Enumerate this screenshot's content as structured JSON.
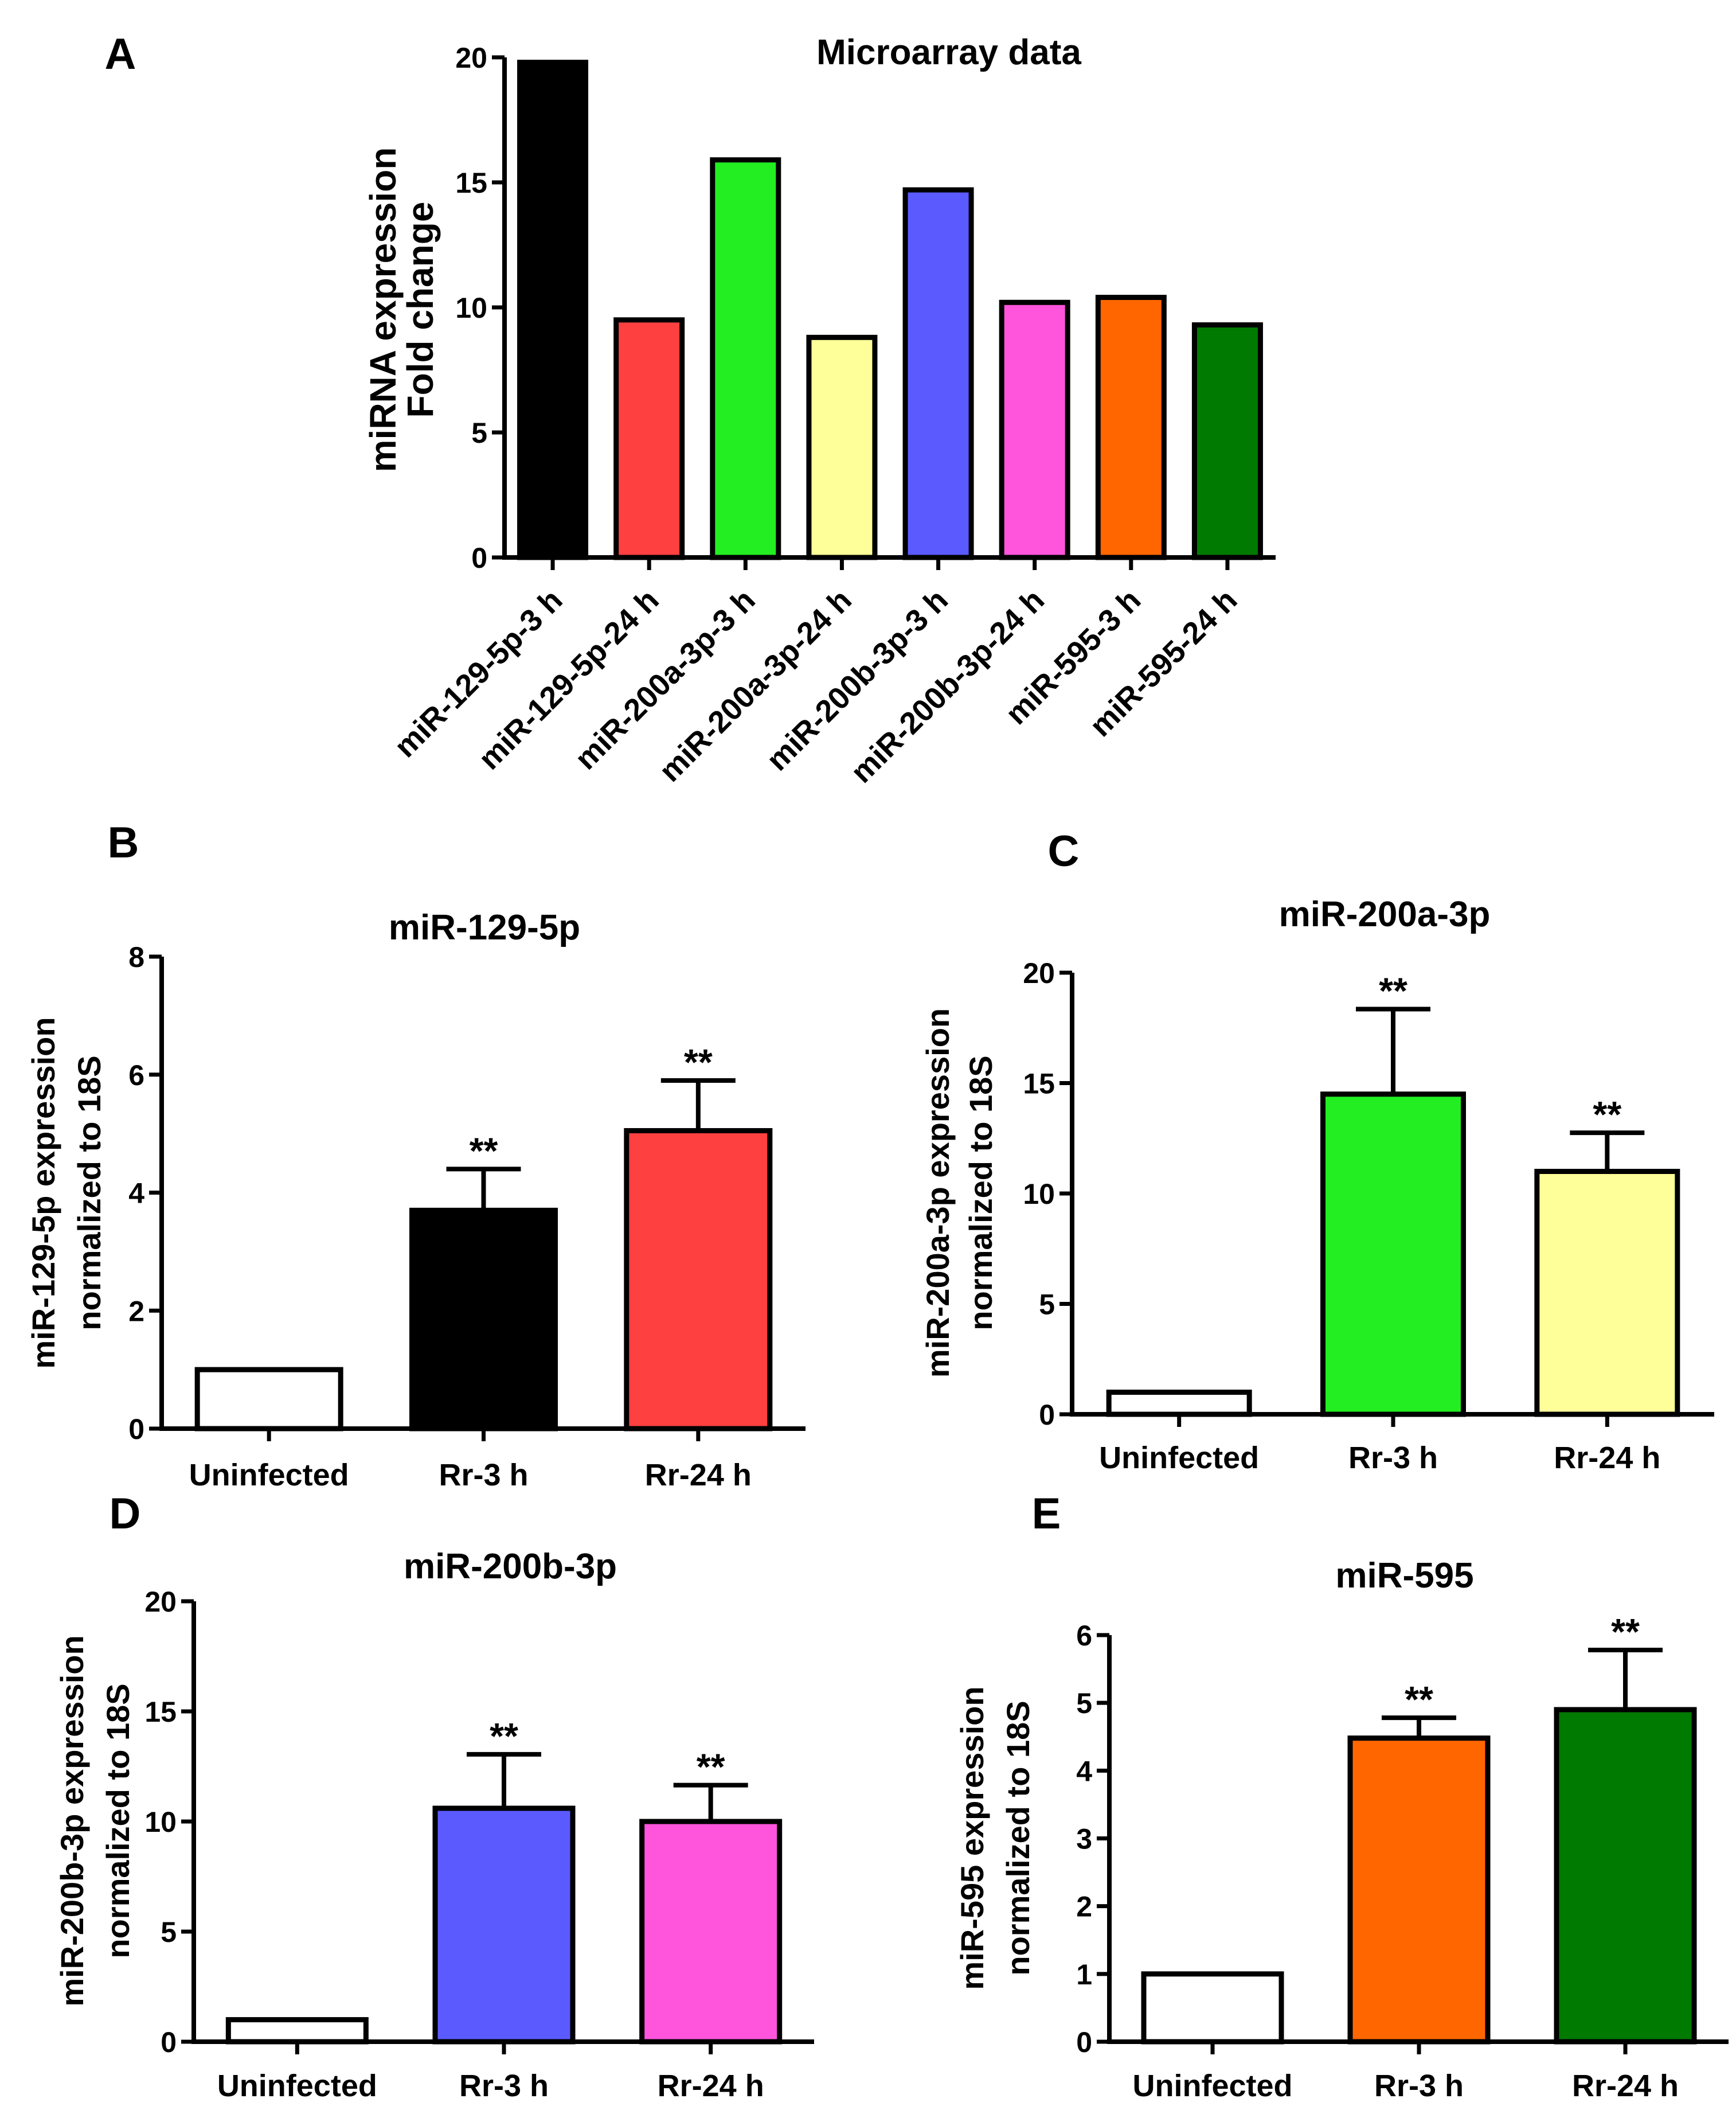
{
  "chart_data": [
    {
      "id": "A",
      "letter": "A",
      "type": "bar",
      "title": "Microarray data",
      "ylabel_lines": [
        "miRNA expression",
        "Fold change"
      ],
      "ylim": [
        0,
        20
      ],
      "yticks": [
        0,
        5,
        10,
        15,
        20
      ],
      "categories": [
        "miR-129-5p-3 h",
        "miR-129-5p-24 h",
        "miR-200a-3p-3 h",
        "miR-200a-3p-24 h",
        "miR-200b-3p-3 h",
        "miR-200b-3p-24 h",
        "miR-595-3 h",
        "miR-595-24 h"
      ],
      "values": [
        19.8,
        9.5,
        15.9,
        8.8,
        14.7,
        10.2,
        10.4,
        9.3
      ],
      "colors": [
        "#000000",
        "#ff4040",
        "#22ee22",
        "#ffff99",
        "#5a5aff",
        "#ff55dd",
        "#ff6600",
        "#007a00"
      ]
    },
    {
      "id": "B",
      "letter": "B",
      "type": "bar",
      "title": "miR-129-5p",
      "ylabel_lines": [
        "miR-129-5p expression",
        "normalized to 18S"
      ],
      "ylim": [
        0,
        8
      ],
      "yticks": [
        0,
        2,
        4,
        6,
        8
      ],
      "categories": [
        "Uninfected",
        "Rr-3 h",
        "Rr-24 h"
      ],
      "values": [
        1.0,
        3.7,
        5.05
      ],
      "errors": [
        0,
        0.7,
        0.85
      ],
      "significance": [
        "",
        "**",
        "**"
      ],
      "colors": [
        "#ffffff",
        "#000000",
        "#ff4040"
      ]
    },
    {
      "id": "C",
      "letter": "C",
      "type": "bar",
      "title": "miR-200a-3p",
      "ylabel_lines": [
        "miR-200a-3p expression",
        "normalized to 18S"
      ],
      "ylim": [
        0,
        20
      ],
      "yticks": [
        0,
        5,
        10,
        15,
        20
      ],
      "categories": [
        "Uninfected",
        "Rr-3 h",
        "Rr-24 h"
      ],
      "values": [
        1.0,
        14.5,
        11.0
      ],
      "errors": [
        0,
        3.85,
        1.75
      ],
      "significance": [
        "",
        "**",
        "**"
      ],
      "colors": [
        "#ffffff",
        "#22ee22",
        "#ffff99"
      ]
    },
    {
      "id": "D",
      "letter": "D",
      "type": "bar",
      "title": "miR-200b-3p",
      "ylabel_lines": [
        "miR-200b-3p expression",
        "normalized to 18S"
      ],
      "ylim": [
        0,
        20
      ],
      "yticks": [
        0,
        5,
        10,
        15,
        20
      ],
      "categories": [
        "Uninfected",
        "Rr-3 h",
        "Rr-24 h"
      ],
      "values": [
        1.0,
        10.6,
        10.0
      ],
      "errors": [
        0,
        2.45,
        1.65
      ],
      "significance": [
        "",
        "**",
        "**"
      ],
      "colors": [
        "#ffffff",
        "#5a5aff",
        "#ff55dd"
      ]
    },
    {
      "id": "E",
      "letter": "E",
      "type": "bar",
      "title": "miR-595",
      "ylabel_lines": [
        "miR-595 expression",
        "normalized to 18S"
      ],
      "ylim": [
        0,
        6
      ],
      "yticks": [
        0,
        1,
        2,
        3,
        4,
        5,
        6
      ],
      "categories": [
        "Uninfected",
        "Rr-3 h",
        "Rr-24 h"
      ],
      "values": [
        1.0,
        4.48,
        4.9
      ],
      "errors": [
        0,
        0.3,
        0.88
      ],
      "significance": [
        "",
        "**",
        "**"
      ],
      "colors": [
        "#ffffff",
        "#ff6600",
        "#007a00"
      ]
    }
  ]
}
